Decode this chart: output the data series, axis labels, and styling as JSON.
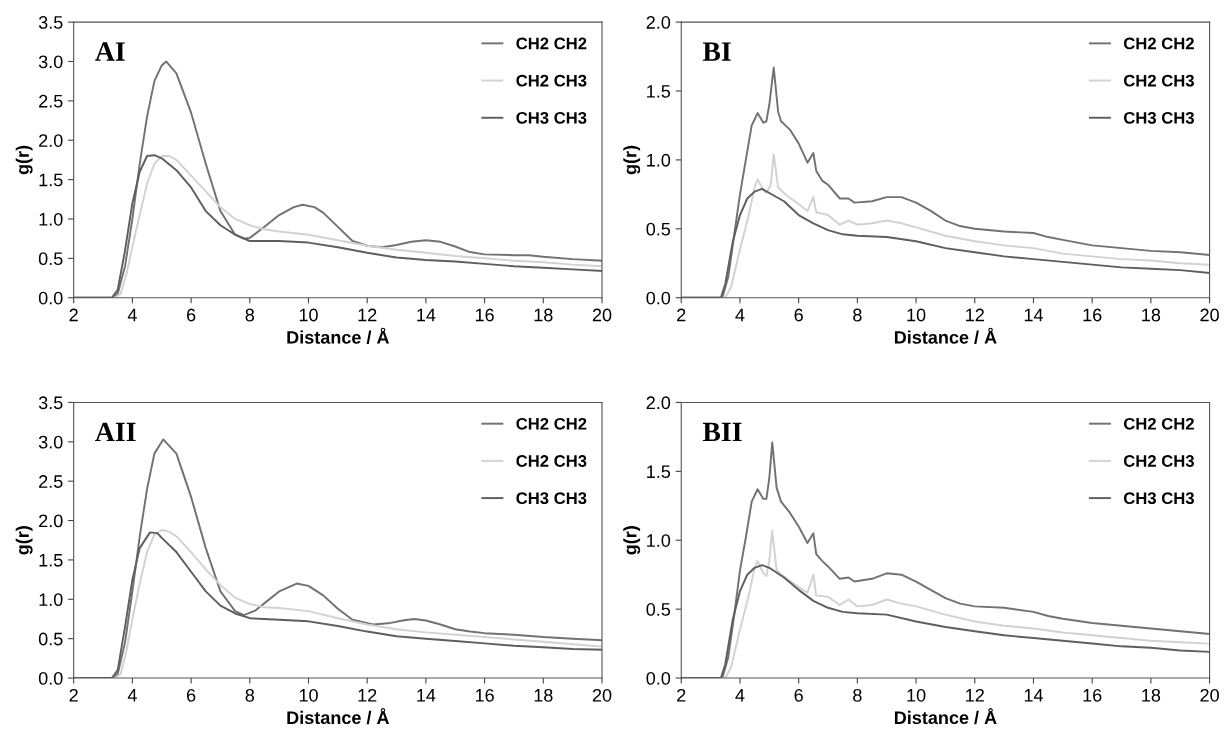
{
  "chart_data": [
    {
      "type": "line",
      "title": "AI",
      "xlabel": "Distance / Å",
      "ylabel": "g(r)",
      "xlim": [
        2,
        20
      ],
      "ylim": [
        0,
        3.5
      ],
      "xticks": [
        2,
        4,
        6,
        8,
        10,
        12,
        14,
        16,
        18,
        20
      ],
      "yticks": [
        {
          "value": 0,
          "label": "0.0"
        },
        0.5,
        {
          "value": 1,
          "label": "1.0"
        },
        1.5,
        {
          "value": 2,
          "label": "2.0"
        },
        2.5,
        {
          "value": 3,
          "label": "3.0"
        },
        3.5
      ],
      "legend": "top right",
      "series": [
        {
          "name": "CH2 CH2",
          "color": "#727272",
          "x": [
            2,
            3.3,
            3.5,
            3.75,
            4,
            4.25,
            4.5,
            4.75,
            5,
            5.15,
            5.5,
            6,
            6.5,
            7,
            7.5,
            7.8,
            8,
            8.5,
            9,
            9.5,
            9.8,
            10.2,
            10.5,
            11,
            11.5,
            12,
            12.5,
            13,
            13.5,
            14,
            14.5,
            15,
            15.5,
            16,
            17,
            17.5,
            18,
            19,
            20
          ],
          "values": [
            0,
            0,
            0.05,
            0.4,
            1.0,
            1.7,
            2.3,
            2.75,
            2.95,
            3.0,
            2.85,
            2.35,
            1.7,
            1.1,
            0.8,
            0.75,
            0.76,
            0.9,
            1.05,
            1.15,
            1.18,
            1.15,
            1.08,
            0.9,
            0.72,
            0.66,
            0.64,
            0.67,
            0.71,
            0.73,
            0.71,
            0.65,
            0.58,
            0.55,
            0.54,
            0.54,
            0.52,
            0.49,
            0.47
          ]
        },
        {
          "name": "CH2 CH3",
          "color": "#d2d2d2",
          "x": [
            2,
            3.4,
            3.6,
            3.8,
            4,
            4.25,
            4.5,
            4.75,
            5,
            5.25,
            5.5,
            6,
            6.5,
            7,
            7.5,
            8,
            8.5,
            9,
            10,
            11,
            12,
            13,
            14,
            15,
            16,
            17,
            18,
            19,
            20
          ],
          "values": [
            0,
            0,
            0.05,
            0.3,
            0.65,
            1.05,
            1.45,
            1.7,
            1.8,
            1.8,
            1.75,
            1.55,
            1.35,
            1.15,
            1.0,
            0.92,
            0.87,
            0.84,
            0.8,
            0.73,
            0.66,
            0.61,
            0.57,
            0.53,
            0.5,
            0.47,
            0.45,
            0.42,
            0.4
          ]
        },
        {
          "name": "CH3 CH3",
          "color": "#5e5e5e",
          "x": [
            2,
            3.3,
            3.5,
            3.75,
            4,
            4.25,
            4.5,
            4.75,
            5,
            5.5,
            6,
            6.5,
            7,
            7.5,
            8,
            9,
            10,
            11,
            12,
            13,
            14,
            15,
            16,
            17,
            18,
            19,
            20
          ],
          "values": [
            0,
            0,
            0.1,
            0.6,
            1.2,
            1.6,
            1.8,
            1.81,
            1.77,
            1.62,
            1.4,
            1.1,
            0.92,
            0.8,
            0.72,
            0.72,
            0.7,
            0.64,
            0.57,
            0.51,
            0.48,
            0.46,
            0.43,
            0.4,
            0.38,
            0.36,
            0.34
          ]
        }
      ]
    },
    {
      "type": "line",
      "title": "BI",
      "xlabel": "Distance / Å",
      "ylabel": "g(r)",
      "xlim": [
        2,
        20
      ],
      "ylim": [
        0,
        2
      ],
      "xticks": [
        2,
        4,
        6,
        8,
        10,
        12,
        14,
        16,
        18,
        20
      ],
      "yticks": [
        {
          "value": 0,
          "label": "0.0"
        },
        0.5,
        {
          "value": 1,
          "label": "1.0"
        },
        1.5,
        {
          "value": 2,
          "label": "2.0"
        }
      ],
      "legend": "top right",
      "series": [
        {
          "name": "CH2 CH2",
          "color": "#727272",
          "x": [
            2,
            3.4,
            3.6,
            3.8,
            4,
            4.2,
            4.4,
            4.6,
            4.8,
            4.9,
            5.0,
            5.15,
            5.3,
            5.4,
            5.7,
            6,
            6.3,
            6.5,
            6.6,
            6.8,
            7,
            7.4,
            7.7,
            7.9,
            8.5,
            9,
            9.5,
            10,
            10.5,
            11,
            11.5,
            12,
            13,
            14,
            14.5,
            15,
            16,
            17,
            18,
            19,
            20
          ],
          "values": [
            0,
            0,
            0.15,
            0.45,
            0.75,
            1.0,
            1.25,
            1.34,
            1.27,
            1.28,
            1.4,
            1.67,
            1.35,
            1.28,
            1.22,
            1.12,
            0.98,
            1.05,
            0.92,
            0.85,
            0.82,
            0.72,
            0.72,
            0.69,
            0.7,
            0.73,
            0.73,
            0.69,
            0.63,
            0.56,
            0.52,
            0.5,
            0.48,
            0.47,
            0.44,
            0.42,
            0.38,
            0.36,
            0.34,
            0.33,
            0.31
          ]
        },
        {
          "name": "CH2 CH3",
          "color": "#d2d2d2",
          "x": [
            2,
            3.5,
            3.7,
            4,
            4.3,
            4.5,
            4.6,
            4.8,
            4.9,
            5.05,
            5.15,
            5.3,
            5.6,
            6,
            6.3,
            6.5,
            6.6,
            7,
            7.4,
            7.7,
            8,
            8.5,
            9,
            9.5,
            10,
            11,
            12,
            13,
            14,
            15,
            16,
            17,
            18,
            19,
            20
          ],
          "values": [
            0,
            0,
            0.08,
            0.35,
            0.6,
            0.8,
            0.86,
            0.78,
            0.76,
            0.82,
            1.04,
            0.8,
            0.74,
            0.68,
            0.63,
            0.73,
            0.62,
            0.6,
            0.53,
            0.56,
            0.53,
            0.54,
            0.56,
            0.54,
            0.51,
            0.45,
            0.41,
            0.38,
            0.36,
            0.32,
            0.3,
            0.28,
            0.27,
            0.25,
            0.24
          ]
        },
        {
          "name": "CH3 CH3",
          "color": "#5e5e5e",
          "x": [
            2,
            3.35,
            3.5,
            3.75,
            4,
            4.25,
            4.5,
            4.75,
            5,
            5.5,
            6,
            6.5,
            7,
            7.5,
            8,
            9,
            10,
            11,
            12,
            13,
            14,
            15,
            16,
            17,
            18,
            19,
            20
          ],
          "values": [
            0,
            0,
            0.1,
            0.4,
            0.6,
            0.72,
            0.77,
            0.79,
            0.76,
            0.7,
            0.6,
            0.54,
            0.49,
            0.46,
            0.45,
            0.44,
            0.41,
            0.36,
            0.33,
            0.3,
            0.28,
            0.26,
            0.24,
            0.22,
            0.21,
            0.2,
            0.18
          ]
        }
      ]
    },
    {
      "type": "line",
      "title": "AII",
      "xlabel": "Distance / Å",
      "ylabel": "g(r)",
      "xlim": [
        2,
        20
      ],
      "ylim": [
        0,
        3.5
      ],
      "xticks": [
        2,
        4,
        6,
        8,
        10,
        12,
        14,
        16,
        18,
        20
      ],
      "yticks": [
        {
          "value": 0,
          "label": "0.0"
        },
        0.5,
        {
          "value": 1,
          "label": "1.0"
        },
        1.5,
        {
          "value": 2,
          "label": "2.0"
        },
        2.5,
        {
          "value": 3,
          "label": "3.0"
        },
        3.5
      ],
      "legend": "top right",
      "series": [
        {
          "name": "CH2 CH2",
          "color": "#727272",
          "x": [
            2,
            3.3,
            3.5,
            3.75,
            4,
            4.25,
            4.5,
            4.75,
            5.05,
            5.5,
            6,
            6.5,
            7,
            7.5,
            7.8,
            8.2,
            8.6,
            9,
            9.6,
            10,
            10.5,
            11,
            11.5,
            12.2,
            12.8,
            13.2,
            13.6,
            14,
            14.5,
            15,
            15.5,
            16,
            17,
            18,
            19,
            20
          ],
          "values": [
            0,
            0,
            0.05,
            0.45,
            1.1,
            1.8,
            2.4,
            2.85,
            3.03,
            2.85,
            2.3,
            1.65,
            1.1,
            0.85,
            0.8,
            0.86,
            0.98,
            1.1,
            1.2,
            1.17,
            1.05,
            0.88,
            0.74,
            0.68,
            0.7,
            0.73,
            0.75,
            0.73,
            0.68,
            0.62,
            0.59,
            0.57,
            0.55,
            0.52,
            0.5,
            0.48
          ]
        },
        {
          "name": "CH2 CH3",
          "color": "#d2d2d2",
          "x": [
            2,
            3.4,
            3.6,
            3.8,
            4,
            4.25,
            4.5,
            4.75,
            5,
            5.25,
            5.5,
            6,
            6.5,
            7,
            7.5,
            8,
            8.5,
            9,
            10,
            11,
            12,
            13,
            14,
            15,
            16,
            17,
            18,
            19,
            20
          ],
          "values": [
            0,
            0,
            0.05,
            0.35,
            0.75,
            1.2,
            1.6,
            1.82,
            1.88,
            1.86,
            1.8,
            1.6,
            1.38,
            1.18,
            1.02,
            0.94,
            0.9,
            0.89,
            0.85,
            0.76,
            0.68,
            0.62,
            0.58,
            0.55,
            0.52,
            0.49,
            0.46,
            0.43,
            0.4
          ]
        },
        {
          "name": "CH3 CH3",
          "color": "#5e5e5e",
          "x": [
            2,
            3.3,
            3.5,
            3.75,
            4,
            4.25,
            4.6,
            4.85,
            5,
            5.5,
            6,
            6.5,
            7,
            7.5,
            8,
            9,
            10,
            11,
            12,
            13,
            14,
            15,
            16,
            17,
            18,
            19,
            20
          ],
          "values": [
            0,
            0,
            0.1,
            0.65,
            1.25,
            1.65,
            1.85,
            1.84,
            1.78,
            1.6,
            1.35,
            1.1,
            0.92,
            0.82,
            0.76,
            0.74,
            0.72,
            0.66,
            0.59,
            0.53,
            0.5,
            0.47,
            0.44,
            0.41,
            0.39,
            0.37,
            0.36
          ]
        }
      ]
    },
    {
      "type": "line",
      "title": "BII",
      "xlabel": "Distance / Å",
      "ylabel": "g(r)",
      "xlim": [
        2,
        20
      ],
      "ylim": [
        0,
        2
      ],
      "xticks": [
        2,
        4,
        6,
        8,
        10,
        12,
        14,
        16,
        18,
        20
      ],
      "yticks": [
        {
          "value": 0,
          "label": "0.0"
        },
        0.5,
        {
          "value": 1,
          "label": "1.0"
        },
        1.5,
        {
          "value": 2,
          "label": "2.0"
        }
      ],
      "legend": "top right",
      "series": [
        {
          "name": "CH2 CH2",
          "color": "#727272",
          "x": [
            2,
            3.4,
            3.6,
            3.8,
            4,
            4.2,
            4.4,
            4.6,
            4.8,
            4.9,
            5.0,
            5.1,
            5.25,
            5.4,
            5.7,
            6,
            6.3,
            6.5,
            6.6,
            6.8,
            7,
            7.4,
            7.7,
            7.9,
            8.5,
            9,
            9.5,
            10,
            10.5,
            11,
            11.5,
            12,
            13,
            14,
            14.5,
            15,
            16,
            17,
            18,
            19,
            20
          ],
          "values": [
            0,
            0,
            0.15,
            0.45,
            0.78,
            1.02,
            1.28,
            1.37,
            1.3,
            1.3,
            1.45,
            1.71,
            1.38,
            1.28,
            1.2,
            1.1,
            0.98,
            1.05,
            0.9,
            0.85,
            0.81,
            0.72,
            0.73,
            0.7,
            0.72,
            0.76,
            0.75,
            0.7,
            0.64,
            0.58,
            0.54,
            0.52,
            0.51,
            0.48,
            0.45,
            0.43,
            0.4,
            0.38,
            0.36,
            0.34,
            0.32
          ]
        },
        {
          "name": "CH2 CH3",
          "color": "#d2d2d2",
          "x": [
            2,
            3.5,
            3.7,
            4,
            4.3,
            4.5,
            4.6,
            4.8,
            4.9,
            5.0,
            5.1,
            5.25,
            5.6,
            6,
            6.3,
            6.5,
            6.6,
            7,
            7.4,
            7.7,
            8,
            8.5,
            9,
            9.5,
            10,
            11,
            12,
            13,
            14,
            15,
            16,
            17,
            18,
            19,
            20
          ],
          "values": [
            0,
            0,
            0.08,
            0.35,
            0.6,
            0.8,
            0.85,
            0.76,
            0.74,
            0.85,
            1.07,
            0.78,
            0.72,
            0.66,
            0.62,
            0.75,
            0.6,
            0.59,
            0.53,
            0.57,
            0.52,
            0.53,
            0.57,
            0.54,
            0.52,
            0.46,
            0.41,
            0.38,
            0.36,
            0.33,
            0.31,
            0.29,
            0.27,
            0.26,
            0.25
          ]
        },
        {
          "name": "CH3 CH3",
          "color": "#5e5e5e",
          "x": [
            2,
            3.35,
            3.5,
            3.75,
            4,
            4.25,
            4.5,
            4.75,
            5,
            5.5,
            6,
            6.5,
            7,
            7.5,
            8,
            9,
            10,
            11,
            12,
            13,
            14,
            15,
            16,
            17,
            18,
            19,
            20
          ],
          "values": [
            0,
            0,
            0.1,
            0.42,
            0.63,
            0.75,
            0.8,
            0.82,
            0.8,
            0.73,
            0.64,
            0.56,
            0.51,
            0.48,
            0.47,
            0.46,
            0.41,
            0.37,
            0.34,
            0.31,
            0.29,
            0.27,
            0.25,
            0.23,
            0.22,
            0.2,
            0.19
          ]
        }
      ]
    }
  ]
}
